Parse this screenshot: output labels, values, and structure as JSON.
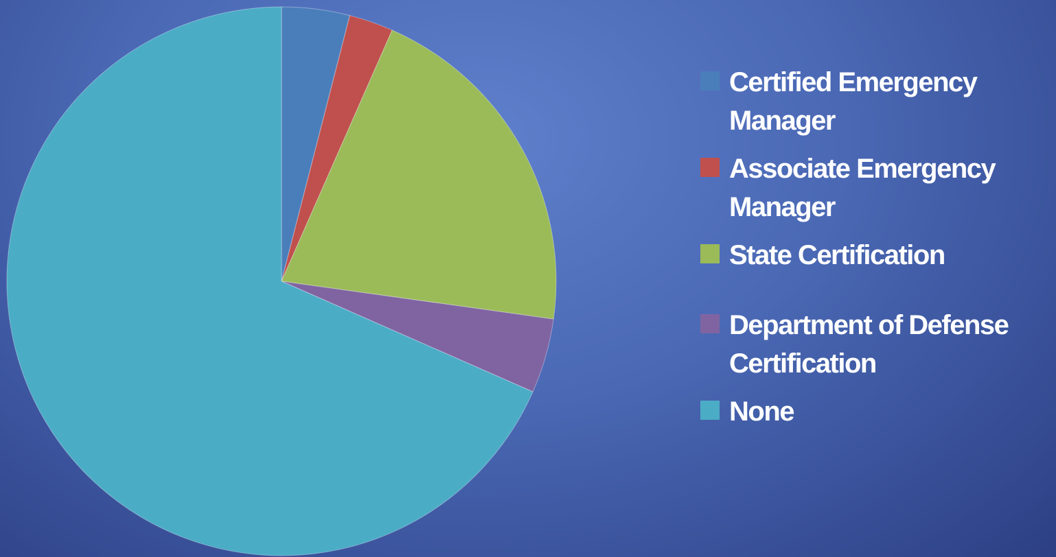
{
  "chart_data": {
    "type": "pie",
    "categories": [
      "Certified Emergency Manager",
      "Associate Emergency Manager",
      "State Certification",
      "Department of Defense Certification",
      "None"
    ],
    "values": [
      4,
      2.6,
      20.6,
      4.4,
      68.4
    ],
    "colors": [
      "#4a7ebb",
      "#c0504d",
      "#9bbb59",
      "#8064a2",
      "#4bacc6"
    ]
  }
}
